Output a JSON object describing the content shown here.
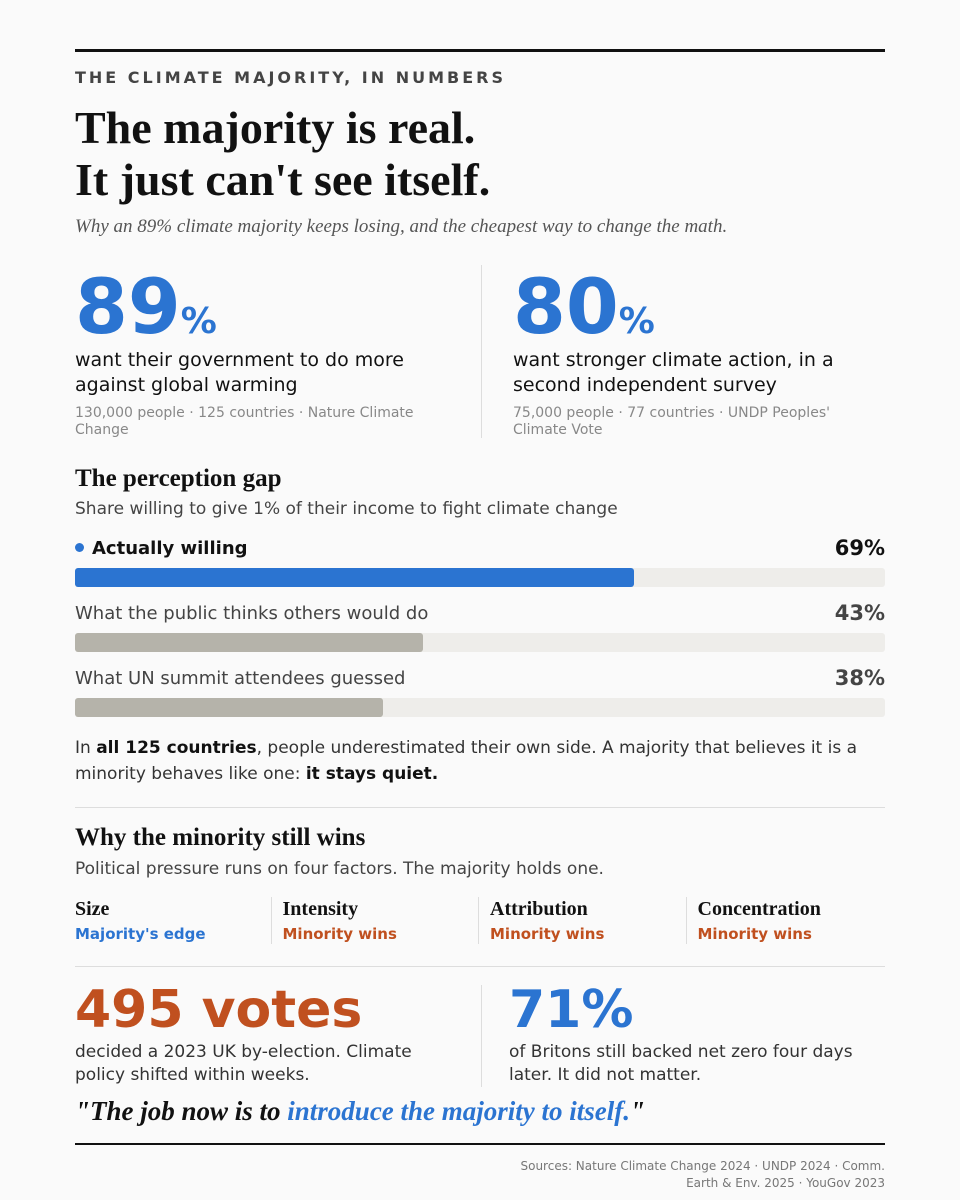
{
  "header": {
    "kicker": "THE CLIMATE MAJORITY, IN NUMBERS",
    "title_lines": [
      "The majority is real.",
      "It just can't see itself."
    ],
    "subtitle": "Why an 89% climate majority keeps losing, and the cheapest way to change the math."
  },
  "stats": [
    {
      "number": "89",
      "unit": "%",
      "description": "want their government to do more against global warming",
      "source": "130,000 people · 125 countries · Nature Climate Change"
    },
    {
      "number": "80",
      "unit": "%",
      "description": "want stronger climate action, in a second independent survey",
      "source": "75,000 people · 77 countries · UNDP Peoples' Climate Vote"
    }
  ],
  "chart_data": {
    "type": "bar",
    "title": "The perception gap",
    "subtitle": "Share willing to give 1% of their income to fight climate change",
    "categories": [
      "Actually willing",
      "What the public thinks others would do",
      "What UN summit attendees guessed"
    ],
    "values": [
      69,
      43,
      38
    ],
    "value_labels": [
      "69%",
      "43%",
      "38%"
    ],
    "colors": [
      "#2b74d1",
      "#b5b3aa",
      "#b5b3aa"
    ],
    "highlight": 0,
    "xlim": [
      0,
      100
    ]
  },
  "note": {
    "segments": [
      {
        "text": "In ",
        "bold": false
      },
      {
        "text": "all 125 countries",
        "bold": true
      },
      {
        "text": ", people underestimated their own side. A majority that believes it is a minority behaves like one: ",
        "bold": false
      },
      {
        "text": "it stays quiet.",
        "bold": true
      }
    ]
  },
  "factors": {
    "title": "Why the minority still wins",
    "subtitle": "Political pressure runs on four factors. The majority holds one.",
    "items": [
      {
        "name": "Size",
        "status": "Majority's edge",
        "color": "#2b74d1"
      },
      {
        "name": "Intensity",
        "status": "Minority wins",
        "color": "#c0501f"
      },
      {
        "name": "Attribution",
        "status": "Minority wins",
        "color": "#c0501f"
      },
      {
        "name": "Concentration",
        "status": "Minority wins",
        "color": "#c0501f"
      }
    ]
  },
  "results": [
    {
      "number": "495 votes",
      "description": "decided a 2023 UK by-election. Climate policy shifted within weeks.",
      "color": "#c0501f"
    },
    {
      "number": "71%",
      "description": "of Britons still backed net zero four days later. It did not matter.",
      "color": "#2b74d1"
    }
  ],
  "quote": {
    "segments": [
      {
        "text": "\"The job now is to ",
        "color": "#111111"
      },
      {
        "text": "introduce the majority to itself.",
        "color": "#2b74d1"
      },
      {
        "text": "\"",
        "color": "#111111"
      }
    ]
  },
  "sources": "Sources: Nature Climate Change 2024 · UNDP 2024 · Comm. Earth & Env. 2025 · YouGov 2023"
}
